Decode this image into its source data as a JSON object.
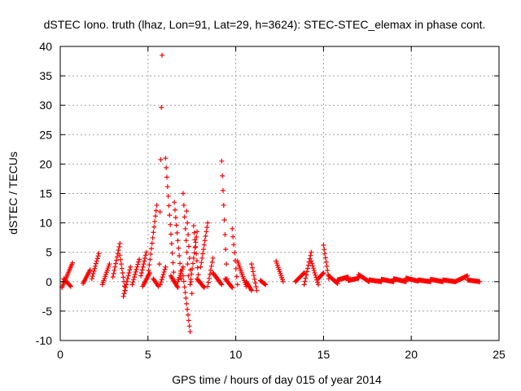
{
  "chart_data": {
    "type": "scatter",
    "title": "dSTEC Iono. truth (lhaz, Lon=91, Lat=29, h=3624): STEC-STEC_elemax in phase cont.",
    "xlabel": "GPS time / hours of day 015 of year 2014",
    "ylabel": "dSTEC  / TECUs",
    "xlim": [
      0,
      25
    ],
    "ylim": [
      -10,
      40
    ],
    "xticks": [
      0,
      5,
      10,
      15,
      20,
      25
    ],
    "yticks": [
      -10,
      -5,
      0,
      5,
      10,
      15,
      20,
      25,
      30,
      35,
      40
    ],
    "xtick_labels": [
      "0",
      "5",
      "10",
      "15",
      "20",
      "25"
    ],
    "ytick_labels": [
      "-10",
      "-5",
      "0",
      "5",
      "10",
      "15",
      "20",
      "25",
      "30",
      "35",
      "40"
    ],
    "grid": true,
    "marker": "plus",
    "color": "#ff0000",
    "arcs": [
      {
        "x0": 0.1,
        "x1": 0.7,
        "y0": -1.0,
        "y1": 3.2
      },
      {
        "x0": 0.2,
        "x1": 0.6,
        "y0": 0.5,
        "y1": -0.8
      },
      {
        "x0": 1.3,
        "x1": 1.7,
        "y0": -0.3,
        "y1": 2.0
      },
      {
        "x0": 1.8,
        "x1": 2.2,
        "y0": 0.5,
        "y1": 4.8
      },
      {
        "x0": 2.4,
        "x1": 2.8,
        "y0": -0.5,
        "y1": 3.0
      },
      {
        "x0": 3.0,
        "x1": 3.4,
        "y0": 0.8,
        "y1": 6.5
      },
      {
        "x0": 3.4,
        "x1": 3.7,
        "y0": 4.5,
        "y1": -1.5
      },
      {
        "x0": 3.6,
        "x1": 4.0,
        "y0": -2.5,
        "y1": 2.5
      },
      {
        "x0": 4.1,
        "x1": 4.5,
        "y0": -0.5,
        "y1": 3.8
      },
      {
        "x0": 4.6,
        "x1": 4.9,
        "y0": 1.0,
        "y1": 5.0
      },
      {
        "x0": 4.7,
        "x1": 5.1,
        "y0": -0.8,
        "y1": 1.5
      },
      {
        "x0": 5.0,
        "x1": 5.5,
        "y0": 1.0,
        "y1": 13.0
      },
      {
        "x0": 5.3,
        "x1": 5.6,
        "y0": 0.5,
        "y1": -0.8
      },
      {
        "x0": 5.65,
        "x1": 5.8,
        "y0": 3.0,
        "y1": 38.5
      },
      {
        "x0": 5.7,
        "x1": 6.0,
        "y0": -0.5,
        "y1": 2.5
      },
      {
        "x0": 6.0,
        "x1": 6.5,
        "y0": 21.0,
        "y1": 0.0
      },
      {
        "x0": 6.3,
        "x1": 6.7,
        "y0": 1.0,
        "y1": -1.0
      },
      {
        "x0": 6.5,
        "x1": 6.9,
        "y0": 13.5,
        "y1": 0.5
      },
      {
        "x0": 6.7,
        "x1": 7.0,
        "y0": 0.0,
        "y1": 2.5
      },
      {
        "x0": 7.0,
        "x1": 7.3,
        "y0": 15.0,
        "y1": 1.0
      },
      {
        "x0": 7.0,
        "x1": 7.4,
        "y0": 1.0,
        "y1": -8.5
      },
      {
        "x0": 7.2,
        "x1": 7.5,
        "y0": 12.0,
        "y1": -2.0
      },
      {
        "x0": 7.4,
        "x1": 7.8,
        "y0": -0.5,
        "y1": 8.5
      },
      {
        "x0": 7.6,
        "x1": 7.9,
        "y0": 9.5,
        "y1": 0.0
      },
      {
        "x0": 7.8,
        "x1": 8.2,
        "y0": 0.5,
        "y1": -1.0
      },
      {
        "x0": 8.0,
        "x1": 8.4,
        "y0": 2.5,
        "y1": 10.0
      },
      {
        "x0": 8.4,
        "x1": 8.7,
        "y0": -0.8,
        "y1": 4.0
      },
      {
        "x0": 8.7,
        "x1": 9.2,
        "y0": 1.5,
        "y1": -0.5
      },
      {
        "x0": 9.2,
        "x1": 9.5,
        "y0": 20.5,
        "y1": 0.5
      },
      {
        "x0": 9.4,
        "x1": 9.8,
        "y0": 0.5,
        "y1": -1.0
      },
      {
        "x0": 9.8,
        "x1": 10.1,
        "y0": 9.0,
        "y1": -0.5
      },
      {
        "x0": 10.1,
        "x1": 10.6,
        "y0": 3.5,
        "y1": -0.8
      },
      {
        "x0": 10.6,
        "x1": 10.9,
        "y0": 0.0,
        "y1": -1.5
      },
      {
        "x0": 10.9,
        "x1": 11.2,
        "y0": 3.0,
        "y1": -1.5
      },
      {
        "x0": 11.4,
        "x1": 11.7,
        "y0": 0.2,
        "y1": -0.5
      },
      {
        "x0": 12.3,
        "x1": 12.7,
        "y0": 3.5,
        "y1": 0.0
      },
      {
        "x0": 13.4,
        "x1": 13.9,
        "y0": 0.0,
        "y1": 1.5
      },
      {
        "x0": 13.9,
        "x1": 14.3,
        "y0": -0.5,
        "y1": 5.0
      },
      {
        "x0": 14.3,
        "x1": 14.7,
        "y0": 3.5,
        "y1": -0.5
      },
      {
        "x0": 14.7,
        "x1": 15.0,
        "y0": 0.5,
        "y1": 1.5
      },
      {
        "x0": 15.0,
        "x1": 15.3,
        "y0": 6.2,
        "y1": 0.5
      },
      {
        "x0": 15.3,
        "x1": 15.8,
        "y0": 1.0,
        "y1": -0.3
      },
      {
        "x0": 15.8,
        "x1": 16.4,
        "y0": 0.3,
        "y1": 0.8
      },
      {
        "x0": 16.4,
        "x1": 17.0,
        "y0": 0.2,
        "y1": 0.6
      },
      {
        "x0": 17.0,
        "x1": 17.6,
        "y0": 1.2,
        "y1": 0.0
      },
      {
        "x0": 17.6,
        "x1": 18.3,
        "y0": 0.3,
        "y1": 0.0
      },
      {
        "x0": 18.3,
        "x1": 19.0,
        "y0": 0.4,
        "y1": 0.0
      },
      {
        "x0": 19.0,
        "x1": 19.7,
        "y0": 0.5,
        "y1": 0.0
      },
      {
        "x0": 19.7,
        "x1": 20.4,
        "y0": 0.6,
        "y1": 0.1
      },
      {
        "x0": 20.4,
        "x1": 21.1,
        "y0": 0.3,
        "y1": 0.0
      },
      {
        "x0": 21.1,
        "x1": 21.8,
        "y0": 0.4,
        "y1": 0.0
      },
      {
        "x0": 21.8,
        "x1": 22.5,
        "y0": 0.3,
        "y1": 0.0
      },
      {
        "x0": 22.5,
        "x1": 23.2,
        "y0": 0.0,
        "y1": 1.0
      },
      {
        "x0": 23.2,
        "x1": 23.9,
        "y0": 0.3,
        "y1": 0.0
      }
    ]
  }
}
